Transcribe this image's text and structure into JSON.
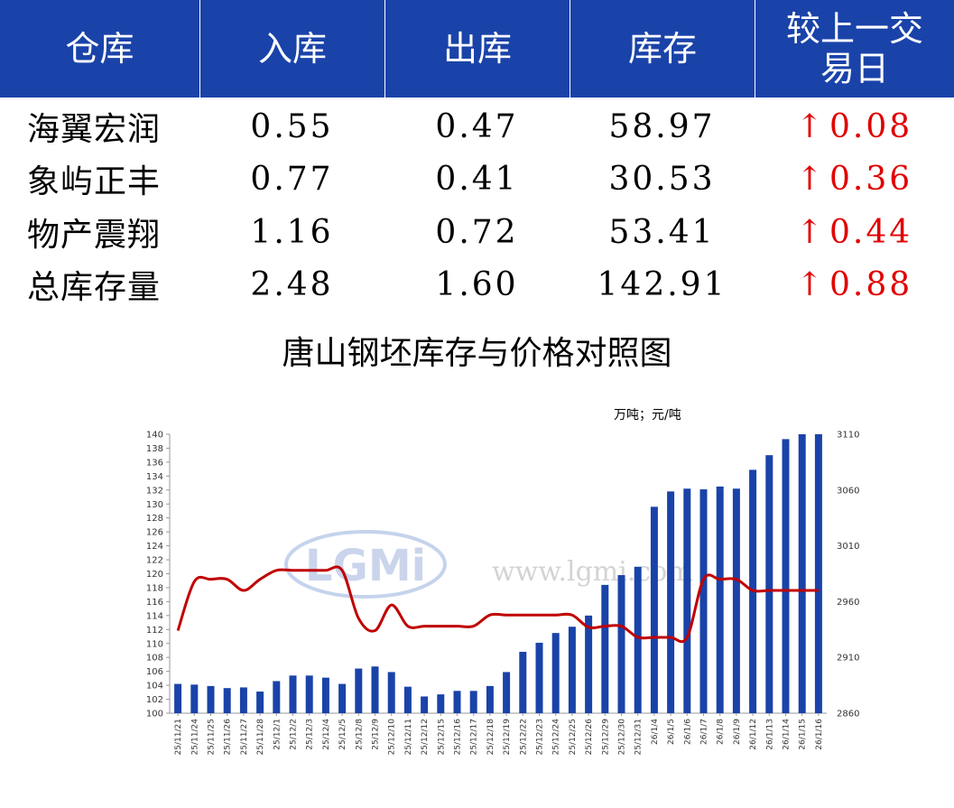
{
  "table": {
    "headers": [
      "仓库",
      "入库",
      "出库",
      "库存",
      "较上一交易日"
    ],
    "rows": [
      {
        "name": "海翼宏润",
        "in": "0.55",
        "out": "0.47",
        "stock": "58.97",
        "arrow": "↑",
        "change": "0.08"
      },
      {
        "name": "象屿正丰",
        "in": "0.77",
        "out": "0.41",
        "stock": "30.53",
        "arrow": "↑",
        "change": "0.36"
      },
      {
        "name": "物产震翔",
        "in": "1.16",
        "out": "0.72",
        "stock": "53.41",
        "arrow": "↑",
        "change": "0.44"
      },
      {
        "name": "总库存量",
        "in": "2.48",
        "out": "1.60",
        "stock": "142.91",
        "arrow": "↑",
        "change": "0.88"
      }
    ],
    "header_color": "#1a43a9",
    "change_color": "#e00000"
  },
  "chart": {
    "title": "唐山钢坯库存与价格对照图",
    "unit_label": "万吨；元/吨",
    "watermark_logo": "LGMi",
    "watermark_url": "www.lgmi.com"
  },
  "chart_data": {
    "type": "bar",
    "categories": [
      "25/11/21",
      "25/11/24",
      "25/11/25",
      "25/11/26",
      "25/11/27",
      "25/11/28",
      "25/12/1",
      "25/12/2",
      "25/12/3",
      "25/12/4",
      "25/12/5",
      "25/12/8",
      "25/12/9",
      "25/12/10",
      "25/12/11",
      "25/12/12",
      "25/12/15",
      "25/12/16",
      "25/12/17",
      "25/12/18",
      "25/12/19",
      "25/12/22",
      "25/12/23",
      "25/12/24",
      "25/12/25",
      "25/12/26",
      "25/12/29",
      "25/12/30",
      "25/12/31",
      "26/1/4",
      "26/1/5",
      "26/1/6",
      "26/1/7",
      "26/1/8",
      "26/1/9",
      "26/1/12",
      "26/1/13",
      "26/1/14",
      "26/1/15",
      "26/1/16"
    ],
    "series": [
      {
        "type": "bar",
        "axis": "left",
        "color": "#1a43a9",
        "values": [
          104.2,
          104.1,
          103.9,
          103.6,
          103.7,
          103.1,
          104.6,
          105.4,
          105.4,
          105.1,
          104.2,
          106.4,
          106.7,
          105.9,
          103.8,
          102.4,
          102.7,
          103.2,
          103.2,
          103.9,
          105.9,
          108.8,
          110.1,
          111.5,
          112.4,
          114.0,
          118.4,
          119.8,
          121.0,
          129.6,
          131.8,
          132.2,
          132.1,
          132.5,
          132.2,
          134.9,
          137.0,
          139.3,
          140.0,
          140.0
        ]
      },
      {
        "type": "line",
        "axis": "right",
        "color": "#c00000",
        "values": [
          2934,
          2978,
          2980,
          2980,
          2970,
          2980,
          2988,
          2988,
          2988,
          2988,
          2988,
          2945,
          2934,
          2957,
          2938,
          2938,
          2938,
          2938,
          2938,
          2948,
          2948,
          2948,
          2948,
          2948,
          2948,
          2937,
          2938,
          2938,
          2928,
          2928,
          2928,
          2928,
          2980,
          2980,
          2980,
          2970,
          2970,
          2970,
          2970,
          2970
        ]
      }
    ],
    "ylim_left": [
      100,
      140
    ],
    "yticks_left": [
      100,
      102,
      104,
      106,
      108,
      110,
      112,
      114,
      116,
      118,
      120,
      122,
      124,
      126,
      128,
      130,
      132,
      134,
      136,
      138,
      140
    ],
    "ylim_right": [
      2860,
      3110
    ],
    "yticks_right": [
      2860,
      2910,
      2960,
      3010,
      3060,
      3110
    ],
    "grid": false,
    "legend": "none"
  }
}
